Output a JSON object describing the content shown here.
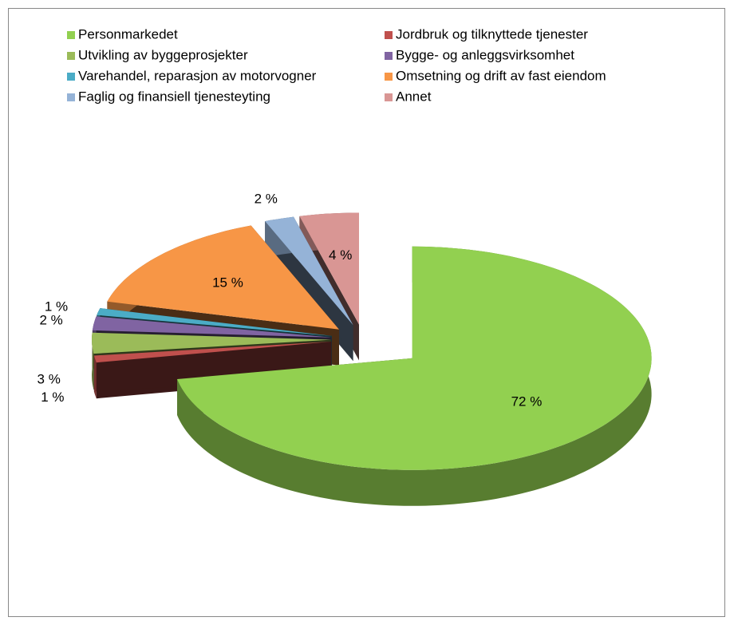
{
  "chart_data": {
    "type": "pie",
    "categories": [
      "Personmarkedet",
      "Jordbruk og tilknyttede tjenester",
      "Utvikling av byggeprosjekter",
      "Bygge- og anleggsvirksomhet",
      "Varehandel, reparasjon av motorvogner",
      "Omsetning og drift av fast eiendom",
      "Faglig og finansiell tjenesteyting",
      "Annet"
    ],
    "values": [
      72,
      1,
      3,
      2,
      1,
      15,
      2,
      4
    ],
    "value_labels": [
      "72 %",
      "1 %",
      "3 %",
      "2 %",
      "1 %",
      "15 %",
      "2 %",
      "4 %"
    ],
    "colors": [
      "#92d050",
      "#c0504d",
      "#9bbb59",
      "#8064a2",
      "#4bacc6",
      "#f79646",
      "#95b3d7",
      "#d99694"
    ],
    "legend": "top"
  }
}
